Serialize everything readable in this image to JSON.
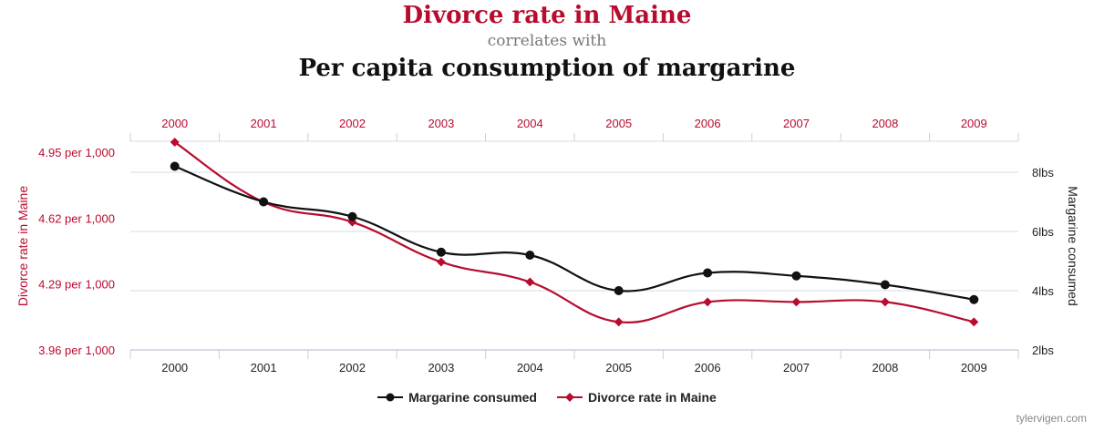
{
  "header": {
    "title": "Divorce rate in Maine",
    "connector": "correlates with",
    "subtitle": "Per capita consumption of margarine"
  },
  "credit": "tylervigen.com",
  "colors": {
    "divorce": "#b80c2e",
    "margarine": "#111111",
    "grid": "#d6dde8",
    "axis": "#c7d0dd"
  },
  "chart_data": {
    "type": "line",
    "x": [
      "2000",
      "2001",
      "2002",
      "2003",
      "2004",
      "2005",
      "2006",
      "2007",
      "2008",
      "2009"
    ],
    "series": [
      {
        "name": "Margarine consumed",
        "axis": "right",
        "color": "#111111",
        "marker": "circle",
        "values": [
          8.2,
          7.0,
          6.5,
          5.3,
          5.2,
          4.0,
          4.6,
          4.5,
          4.2,
          3.7
        ]
      },
      {
        "name": "Divorce rate in Maine",
        "axis": "left",
        "color": "#b80c2e",
        "marker": "diamond",
        "values": [
          5.0,
          4.7,
          4.6,
          4.4,
          4.3,
          4.1,
          4.2,
          4.2,
          4.2,
          4.1
        ]
      }
    ],
    "left_axis": {
      "label": "Divorce rate in Maine",
      "ticks": [
        4.95,
        4.62,
        4.29,
        3.96
      ],
      "tick_labels": [
        "4.95 per 1,000",
        "4.62 per 1,000",
        "4.29 per 1,000",
        "3.96 per 1,000"
      ],
      "range": [
        3.96,
        5.0
      ]
    },
    "right_axis": {
      "label": "Margarine consumed",
      "ticks": [
        8,
        6,
        4,
        2
      ],
      "tick_labels": [
        "8lbs",
        "6lbs",
        "4lbs",
        "2lbs"
      ],
      "range": [
        2,
        9
      ]
    },
    "grid": true,
    "legend": "bottom-center"
  }
}
